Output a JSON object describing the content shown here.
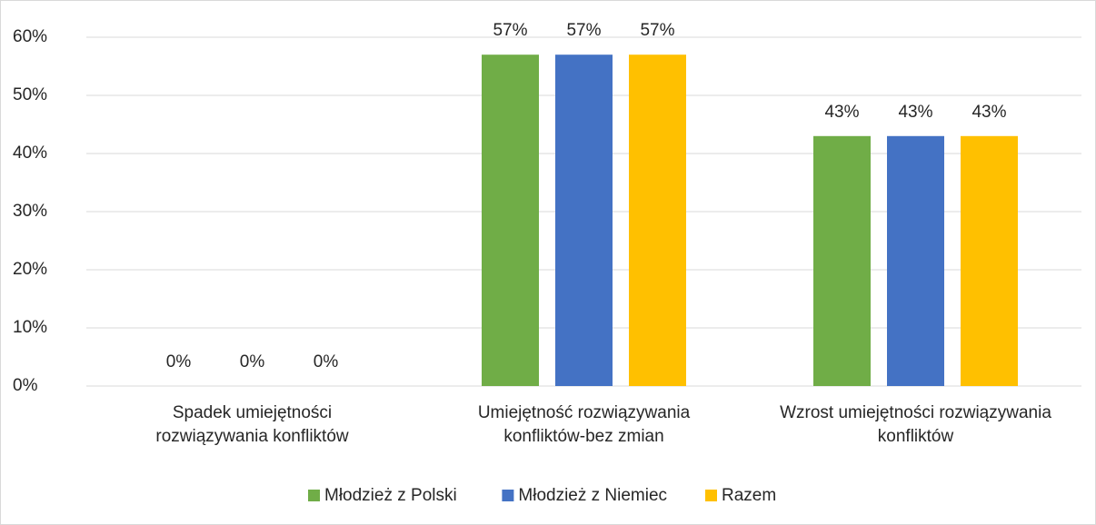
{
  "chart_data": {
    "type": "bar",
    "categories": [
      "Spadek umiejętności rozwiązywania konfliktów",
      "Umiejętność rozwiązywania konfliktów-bez zmian",
      "Wzrost umiejętności rozwiązywania konfliktów"
    ],
    "series": [
      {
        "name": "Młodzież z Polski",
        "color": "#70ad47",
        "values": [
          0,
          57,
          43
        ],
        "value_labels": [
          "0%",
          "57%",
          "43%"
        ]
      },
      {
        "name": "Młodzież z Niemiec",
        "color": "#4472c4",
        "values": [
          0,
          57,
          43
        ],
        "value_labels": [
          "0%",
          "57%",
          "43%"
        ]
      },
      {
        "name": "Razem",
        "color": "#ffc000",
        "values": [
          0,
          57,
          43
        ],
        "value_labels": [
          "0%",
          "57%",
          "43%"
        ]
      }
    ],
    "ylim": [
      0,
      60
    ],
    "yticks": [
      {
        "value": 0,
        "label": "0%"
      },
      {
        "value": 10,
        "label": "10%"
      },
      {
        "value": 20,
        "label": "20%"
      },
      {
        "value": 30,
        "label": "30%"
      },
      {
        "value": 40,
        "label": "40%"
      },
      {
        "value": 50,
        "label": "50%"
      },
      {
        "value": 60,
        "label": "60%"
      }
    ],
    "grid": true,
    "legend": "bottom"
  }
}
